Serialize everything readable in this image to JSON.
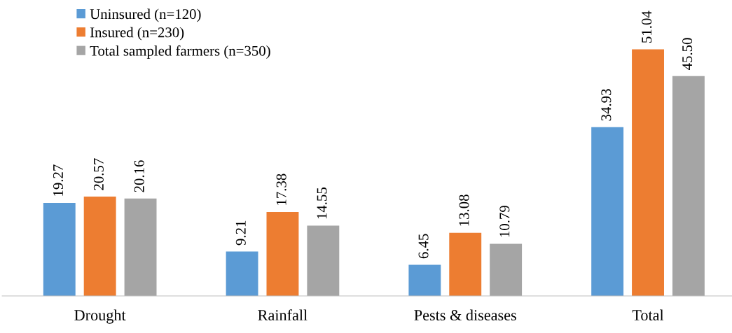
{
  "chart_data": {
    "type": "bar",
    "categories": [
      "Drought",
      "Rainfall",
      "Pests & diseases",
      "Total"
    ],
    "series": [
      {
        "name": "Uninsured (n=120)",
        "color": "#5b9bd5",
        "values": [
          19.27,
          9.21,
          6.45,
          34.93
        ],
        "value_labels": [
          "19.27",
          "9.21",
          "6.45",
          "34.93"
        ]
      },
      {
        "name": "Insured (n=230)",
        "color": "#ed7d31",
        "values": [
          20.57,
          17.38,
          13.08,
          51.04
        ],
        "value_labels": [
          "20.57",
          "17.38",
          "13.08",
          "51.04"
        ]
      },
      {
        "name": "Total sampled farmers (n=350)",
        "color": "#a5a5a5",
        "values": [
          20.16,
          14.55,
          10.79,
          45.5
        ],
        "value_labels": [
          "20.16",
          "14.55",
          "10.79",
          "45.50"
        ]
      }
    ],
    "legend": "top left",
    "grid": false,
    "tick_labels": "x"
  }
}
